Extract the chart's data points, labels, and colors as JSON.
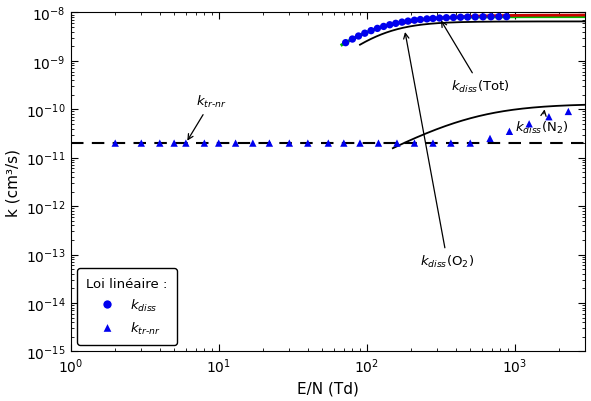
{
  "xlim": [
    1,
    3000
  ],
  "ylim": [
    1e-15,
    1e-08
  ],
  "xlabel": "E/N (Td)",
  "ylabel": "k (cm³/s)",
  "k_trnr_value": 2e-11,
  "dot_color": "#0000ee",
  "line_green_color": "#00bb00",
  "line_red_color": "#cc0000",
  "line_black_color": "#000000",
  "dashed_color": "#000000",
  "background": "#ffffff",
  "x_dots": [
    72,
    80,
    88,
    97,
    107,
    118,
    130,
    143,
    157,
    173,
    190,
    210,
    230,
    255,
    280,
    310,
    345,
    385,
    430,
    480,
    540,
    610,
    690,
    780,
    880
  ],
  "x_tri": [
    2,
    3,
    4,
    5,
    6,
    8,
    10,
    13,
    17,
    22,
    30,
    40,
    55,
    70,
    90,
    120,
    160,
    210,
    280,
    370,
    500,
    680,
    920,
    1250,
    1700,
    2300
  ],
  "y_tri": [
    2e-11,
    2e-11,
    2e-11,
    2e-11,
    2e-11,
    2e-11,
    2e-11,
    2e-11,
    2e-11,
    2e-11,
    2e-11,
    2e-11,
    2e-11,
    2e-11,
    2e-11,
    2e-11,
    2e-11,
    2e-11,
    2e-11,
    2e-11,
    2e-11,
    2.5e-11,
    3.5e-11,
    5e-11,
    7e-11,
    9e-11
  ]
}
